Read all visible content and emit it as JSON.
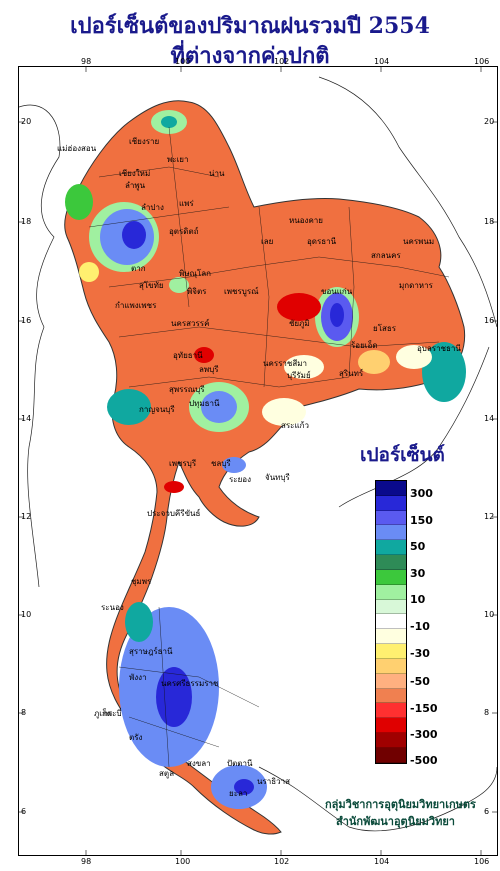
{
  "title_line1": "เปอร์เซ็นต์ของปริมาณฝนรวมปี  2554",
  "title_line2": "ที่ต่างจากค่าปกติ",
  "legend_title": "เปอร์เซ็นต์",
  "legend_colors": [
    "#0a0a8c",
    "#2828d8",
    "#5a5af0",
    "#6a8cf5",
    "#10a8a0",
    "#2e8b57",
    "#3cc83c",
    "#a0f0a0",
    "#d8f8d8",
    "#ffffff",
    "#ffffe0",
    "#fff070",
    "#ffd070",
    "#ffb080",
    "#f08050",
    "#ff3030",
    "#e00000",
    "#a00000",
    "#700000"
  ],
  "legend_labels": [
    "300",
    "150",
    "50",
    "30",
    "10",
    "-10",
    "-30",
    "-50",
    "-150",
    "-300",
    "-500"
  ],
  "lat_labels": [
    "20",
    "18",
    "16",
    "14",
    "12",
    "10",
    "8",
    "6"
  ],
  "lon_labels": [
    "98",
    "100",
    "102",
    "104",
    "106"
  ],
  "credit_line1": "กลุ่มวิชาการอุตุนิยมวิทยาเกษตร",
  "credit_line2": "สำนักพัฒนาอุตุนิยมวิทยา",
  "provinces": [
    "เชียงราย",
    "แม่ฮ่องสอน",
    "พะเยา",
    "เชียงใหม่",
    "ลำพูน",
    "น่าน",
    "แพร่",
    "ลำปาง",
    "อุตรดิตถ์",
    "ตาก",
    "พิษณุโลก",
    "สุโขทัย",
    "กำแพงเพชร",
    "พิจิตร",
    "เพชรบูรณ์",
    "หนองคาย",
    "อุดรธานี",
    "เลย",
    "สกลนคร",
    "นครพนม",
    "ขอนแก่น",
    "มุกดาหาร",
    "ชัยภูมิ",
    "นครสวรรค์",
    "อุทัยธานี",
    "ร้อยเอ็ด",
    "อุบลราชธานี",
    "ยโสธร",
    "สุรินทร์",
    "นครราชสีมา",
    "บุรีรัมย์",
    "ลพบุรี",
    "สุพรรณบุรี",
    "กาญจนบุรี",
    "ปทุมธานี",
    "สระแก้ว",
    "ชลบุรี",
    "ระยอง",
    "จันทบุรี",
    "เพชรบุรี",
    "ประจวบคีรีขันธ์",
    "ชุมพร",
    "ระนอง",
    "สุราษฎร์ธานี",
    "กระบี่",
    "พังงา",
    "ภูเก็ต",
    "นครศรีธรรมราช",
    "ตรัง",
    "สงขลา",
    "สตูล",
    "ปัตตานี",
    "นราธิวาส",
    "ยะลา"
  ]
}
